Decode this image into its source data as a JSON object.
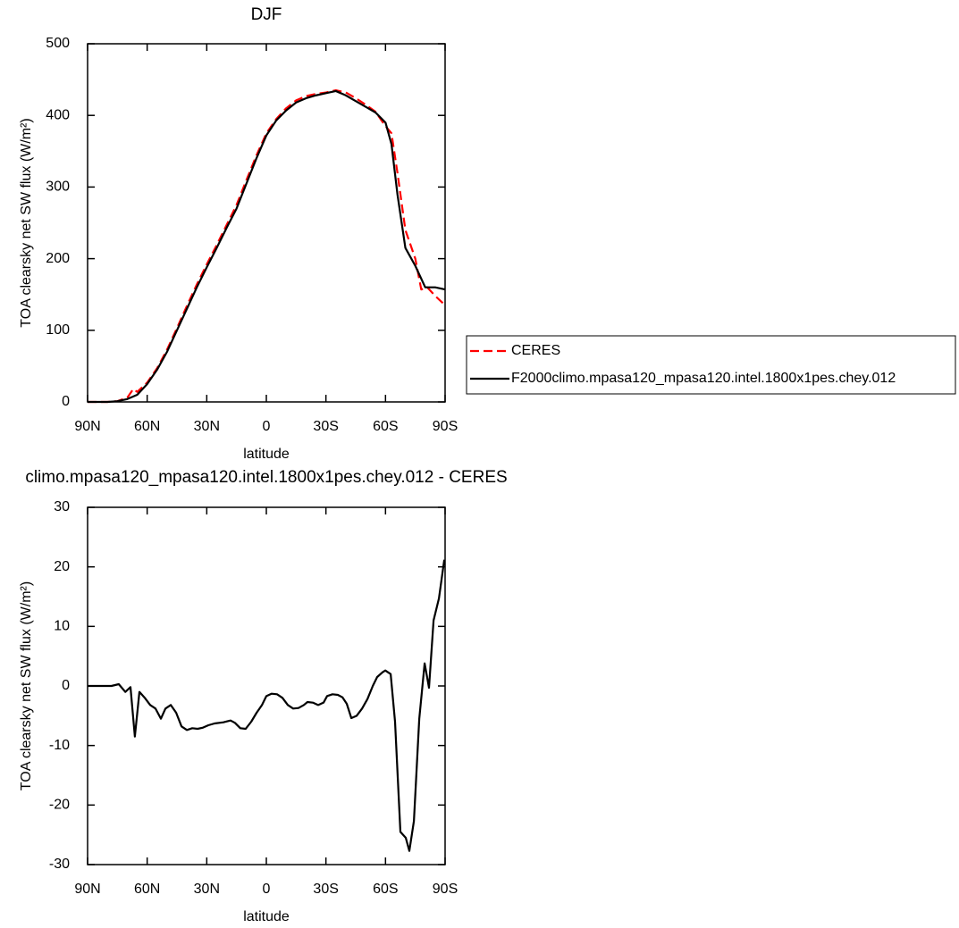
{
  "chart_data": [
    {
      "type": "line",
      "title": "DJF",
      "x_label": "latitude",
      "y_label": "TOA clearsky net SW flux (W/m²)",
      "xlim": [
        90,
        -90
      ],
      "xticks": [
        {
          "value": 90,
          "label": "90N"
        },
        {
          "value": 60,
          "label": "60N"
        },
        {
          "value": 30,
          "label": "30N"
        },
        0,
        {
          "value": -30,
          "label": "30S"
        },
        {
          "value": -60,
          "label": "60S"
        },
        {
          "value": -90,
          "label": "90S"
        }
      ],
      "ylim": [
        0,
        500
      ],
      "yticks": [
        0,
        100,
        200,
        300,
        400,
        500
      ],
      "legend": "right",
      "series": [
        {
          "name": "CERES",
          "color": "#ff0000",
          "linestyle": "dashed",
          "x": [
            90,
            85,
            80,
            75,
            70,
            67,
            65,
            60,
            55,
            50,
            45,
            40,
            35,
            30,
            25,
            20,
            15,
            10,
            5,
            0,
            -5,
            -10,
            -15,
            -20,
            -25,
            -30,
            -35,
            -40,
            -45,
            -50,
            -55,
            -60,
            -63,
            -66,
            -70,
            -75,
            -78,
            -81,
            -85,
            -90
          ],
          "values": [
            0,
            0,
            0,
            1,
            6,
            18,
            14,
            27,
            47,
            73,
            103,
            134,
            164,
            192,
            219,
            247,
            275,
            310,
            344,
            375,
            395,
            410,
            421,
            427,
            430,
            432,
            435,
            432,
            424,
            415,
            405,
            385,
            375,
            320,
            240,
            200,
            157,
            160,
            148,
            135
          ]
        },
        {
          "name": "F2000climo.mpasa120_mpasa120.intel.1800x1pes.chey.012",
          "color": "#000000",
          "linestyle": "solid",
          "x": [
            90,
            85,
            80,
            75,
            70,
            65,
            60,
            55,
            50,
            45,
            40,
            35,
            30,
            25,
            20,
            15,
            10,
            5,
            0,
            -5,
            -10,
            -15,
            -20,
            -25,
            -30,
            -35,
            -40,
            -45,
            -50,
            -55,
            -60,
            -63,
            -66,
            -70,
            -75,
            -80,
            -85,
            -90
          ],
          "values": [
            0,
            0,
            0,
            1,
            4,
            10,
            25,
            45,
            70,
            100,
            130,
            160,
            188,
            215,
            243,
            270,
            305,
            340,
            372,
            393,
            407,
            418,
            424,
            428,
            431,
            434,
            428,
            420,
            412,
            404,
            390,
            360,
            290,
            215,
            190,
            160,
            160,
            157
          ]
        }
      ]
    },
    {
      "type": "line",
      "title": "climo.mpasa120_mpasa120.intel.1800x1pes.chey.012 - CERES",
      "x_label": "latitude",
      "y_label": "TOA clearsky net SW flux (W/m²)",
      "xlim": [
        90,
        -90
      ],
      "xticks": [
        {
          "value": 90,
          "label": "90N"
        },
        {
          "value": 60,
          "label": "60N"
        },
        {
          "value": 30,
          "label": "30N"
        },
        0,
        {
          "value": -30,
          "label": "30S"
        },
        {
          "value": -60,
          "label": "60S"
        },
        {
          "value": -90,
          "label": "90S"
        }
      ],
      "ylim": [
        -30,
        30
      ],
      "yticks": [
        -30,
        -20,
        -10,
        0,
        10,
        20,
        30
      ],
      "series": [
        {
          "color": "#000000",
          "x": [
            90,
            78,
            74.3,
            71,
            68.4,
            66.2,
            63.9,
            61.2,
            58.5,
            55.8,
            53.1,
            50.8,
            48.1,
            45.4,
            42.7,
            40,
            37.3,
            34.6,
            31.9,
            29.2,
            26.1,
            21.6,
            18,
            15.8,
            13.1,
            10.4,
            7.6,
            4.9,
            2.2,
            0,
            -2.7,
            -5.4,
            -8.1,
            -10.8,
            -13.5,
            -16.2,
            -18.9,
            -20.7,
            -23.4,
            -26.1,
            -28.8,
            -30.6,
            -33.3,
            -36,
            -38.3,
            -40.5,
            -42.8,
            -45.5,
            -48.2,
            -50.9,
            -53.6,
            -55.8,
            -58.5,
            -59.9,
            -62.6,
            -64.8,
            -67.5,
            -70.2,
            -72,
            -74.3,
            -77,
            -79.7,
            -81.9,
            -84.2,
            -86.9,
            -89.6
          ],
          "values": [
            0,
            0,
            0.3,
            -1,
            -0.2,
            -8.5,
            -1,
            -2,
            -3.2,
            -3.8,
            -5.5,
            -3.8,
            -3.2,
            -4.5,
            -6.8,
            -7.4,
            -7.1,
            -7.2,
            -7,
            -6.6,
            -6.3,
            -6.1,
            -5.8,
            -6.2,
            -7.1,
            -7.2,
            -6,
            -4.5,
            -3.2,
            -1.7,
            -1.3,
            -1.4,
            -2,
            -3.2,
            -3.8,
            -3.7,
            -3.2,
            -2.7,
            -2.8,
            -3.2,
            -2.8,
            -1.7,
            -1.4,
            -1.5,
            -1.9,
            -3,
            -5.4,
            -5,
            -3.8,
            -2.2,
            0,
            1.5,
            2.3,
            2.6,
            2,
            -6,
            -24.5,
            -25.5,
            -27.7,
            -22.7,
            -5.5,
            3.8,
            -0.3,
            11,
            14.7,
            21.2
          ]
        }
      ]
    }
  ]
}
